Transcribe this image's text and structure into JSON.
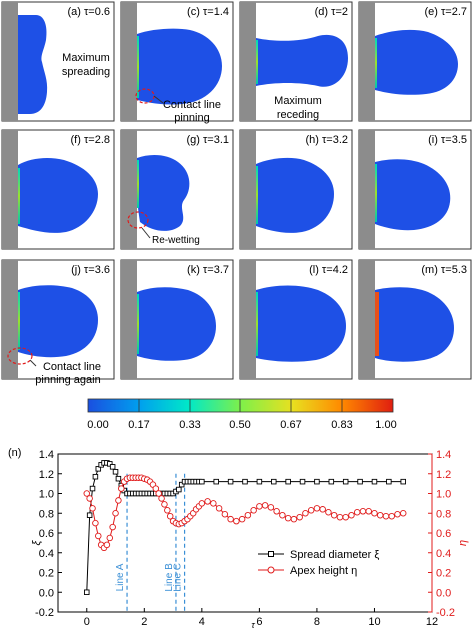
{
  "panels": [
    {
      "label": "(a) τ=0.6"
    },
    {
      "label": "(c) τ=1.4"
    },
    {
      "label": "(d) τ=2"
    },
    {
      "label": "(e) τ=2.7"
    },
    {
      "label": "(f) τ=2.8"
    },
    {
      "label": "(g) τ=3.1"
    },
    {
      "label": "(h) τ=3.2"
    },
    {
      "label": "(i) τ=3.5"
    },
    {
      "label": "(j) τ=3.6"
    },
    {
      "label": "(k) τ=3.7"
    },
    {
      "label": "(l) τ=4.2"
    },
    {
      "label": "(m) τ=5.3"
    }
  ],
  "annotations": {
    "maximum_spreading": [
      "Maximum",
      "spreading"
    ],
    "contact_line_pinning": [
      "Contact line",
      "pinning"
    ],
    "maximum_receding": [
      "Maximum",
      "receding"
    ],
    "re_wetting": "Re-wetting",
    "contact_line_pinning_again": [
      "Contact line",
      "pinning again"
    ]
  },
  "colorbar": {
    "ticks": [
      "0.00",
      "0.17",
      "0.33",
      "0.50",
      "0.67",
      "0.83",
      "1.00"
    ],
    "colors": [
      "#1a4fe0",
      "#00a0ee",
      "#00e8c8",
      "#7ef04a",
      "#e8e020",
      "#ff8a00",
      "#e01e10"
    ]
  },
  "chart_data": {
    "type": "line",
    "panel_label": "(n)",
    "xlabel": "τ",
    "ylabel_left": "ξ",
    "ylabel_right": "η",
    "xlim": [
      -1,
      12
    ],
    "ylim_left": [
      -0.2,
      1.4
    ],
    "ylim_right": [
      -0.2,
      1.4
    ],
    "xticks": [
      "0",
      "2",
      "4",
      "6",
      "8",
      "10",
      "12"
    ],
    "yticks_left": [
      "-0.2",
      "0.0",
      "0.2",
      "0.4",
      "0.6",
      "0.8",
      "1.0",
      "1.2",
      "1.4"
    ],
    "yticks_right": [
      "-0.2",
      "0.0",
      "0.2",
      "0.4",
      "0.6",
      "0.8",
      "1.0",
      "1.2",
      "1.4"
    ],
    "vlines": [
      {
        "x": 1.4,
        "label": "Line A"
      },
      {
        "x": 3.1,
        "label": "Line B"
      },
      {
        "x": 3.4,
        "label": "Line C"
      }
    ],
    "series": [
      {
        "name": "Spread diameter ξ",
        "color": "#000000",
        "marker": "square",
        "x": [
          0.0,
          0.1,
          0.2,
          0.3,
          0.4,
          0.5,
          0.6,
          0.7,
          0.8,
          0.9,
          1.0,
          1.1,
          1.2,
          1.3,
          1.4,
          1.5,
          1.6,
          1.7,
          1.8,
          1.9,
          2.0,
          2.1,
          2.2,
          2.3,
          2.4,
          2.5,
          2.6,
          2.7,
          2.8,
          2.9,
          3.0,
          3.1,
          3.2,
          3.3,
          3.4,
          3.5,
          3.6,
          3.7,
          3.8,
          3.9,
          4.0,
          4.5,
          5.0,
          5.5,
          6.0,
          6.5,
          7.0,
          7.5,
          8.0,
          8.5,
          9.0,
          9.5,
          10.0,
          10.5,
          11.0
        ],
        "y": [
          0.0,
          0.78,
          1.05,
          1.17,
          1.25,
          1.29,
          1.31,
          1.31,
          1.3,
          1.27,
          1.22,
          1.15,
          1.08,
          1.03,
          1.0,
          1.0,
          1.0,
          1.0,
          1.0,
          1.0,
          1.0,
          1.0,
          1.0,
          1.0,
          1.0,
          1.0,
          1.0,
          1.0,
          1.0,
          1.0,
          1.0,
          1.02,
          1.04,
          1.09,
          1.12,
          1.12,
          1.12,
          1.12,
          1.12,
          1.12,
          1.12,
          1.12,
          1.12,
          1.12,
          1.12,
          1.12,
          1.12,
          1.12,
          1.12,
          1.12,
          1.12,
          1.12,
          1.12,
          1.12,
          1.12
        ]
      },
      {
        "name": "Apex height η",
        "color": "#e01b1b",
        "marker": "circle",
        "x": [
          0.0,
          0.1,
          0.2,
          0.3,
          0.4,
          0.5,
          0.6,
          0.7,
          0.8,
          0.9,
          1.0,
          1.1,
          1.2,
          1.3,
          1.4,
          1.5,
          1.6,
          1.7,
          1.8,
          1.9,
          2.0,
          2.1,
          2.2,
          2.3,
          2.4,
          2.5,
          2.6,
          2.7,
          2.8,
          2.9,
          3.0,
          3.1,
          3.2,
          3.3,
          3.4,
          3.5,
          3.6,
          3.7,
          3.8,
          3.9,
          4.0,
          4.2,
          4.4,
          4.6,
          4.8,
          5.0,
          5.2,
          5.4,
          5.6,
          5.8,
          6.0,
          6.2,
          6.4,
          6.6,
          6.8,
          7.0,
          7.2,
          7.4,
          7.6,
          7.8,
          8.0,
          8.2,
          8.4,
          8.6,
          8.8,
          9.0,
          9.2,
          9.4,
          9.6,
          9.8,
          10.0,
          10.2,
          10.4,
          10.6,
          10.8,
          11.0
        ],
        "y": [
          1.0,
          0.95,
          0.85,
          0.7,
          0.57,
          0.48,
          0.45,
          0.48,
          0.55,
          0.66,
          0.8,
          0.93,
          1.05,
          1.12,
          1.15,
          1.16,
          1.16,
          1.16,
          1.16,
          1.16,
          1.15,
          1.14,
          1.12,
          1.09,
          1.05,
          1.0,
          0.95,
          0.89,
          0.83,
          0.77,
          0.72,
          0.7,
          0.69,
          0.7,
          0.72,
          0.74,
          0.77,
          0.8,
          0.84,
          0.87,
          0.9,
          0.92,
          0.9,
          0.85,
          0.79,
          0.74,
          0.72,
          0.74,
          0.78,
          0.83,
          0.87,
          0.88,
          0.86,
          0.82,
          0.78,
          0.75,
          0.74,
          0.76,
          0.8,
          0.83,
          0.85,
          0.84,
          0.81,
          0.78,
          0.76,
          0.76,
          0.78,
          0.81,
          0.82,
          0.82,
          0.8,
          0.78,
          0.77,
          0.77,
          0.79,
          0.8
        ]
      }
    ],
    "legend_position": "lower-right"
  }
}
